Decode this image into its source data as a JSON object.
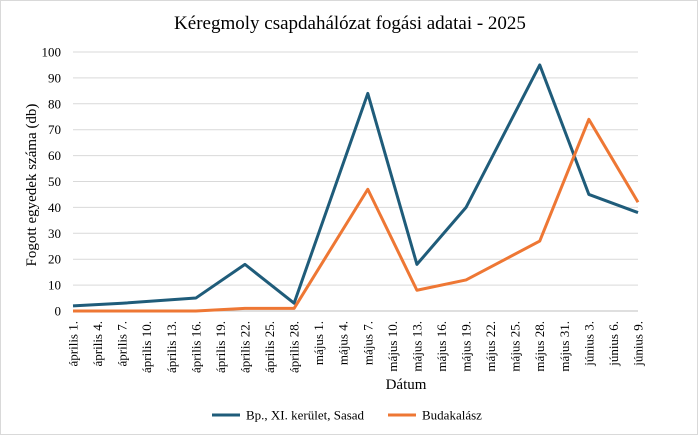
{
  "chart_data": {
    "type": "line",
    "title": "Kéregmoly csapdahálózat fogási adatai - 2025",
    "xlabel": "Dátum",
    "ylabel": "Fogott egyedek száma (db)",
    "ylim": [
      0,
      100
    ],
    "y_ticks": [
      "0",
      "10",
      "20",
      "30",
      "40",
      "50",
      "60",
      "70",
      "80",
      "90",
      "100"
    ],
    "categories": [
      "április 1.",
      "április 4.",
      "április 7.",
      "április 10.",
      "április 13.",
      "április 16.",
      "április 19.",
      "április 22.",
      "április 25.",
      "április 28.",
      "május 1.",
      "május 4.",
      "május 7.",
      "május 10.",
      "május 13.",
      "május 16.",
      "május 19.",
      "május 22.",
      "május 25.",
      "május 28.",
      "május 31.",
      "június 3.",
      "június 6.",
      "június 9."
    ],
    "series": [
      {
        "name": "Bp., XI. kerület, Sasad",
        "color": "#1F5C7A",
        "points": [
          {
            "x": "április 1.",
            "y": 2
          },
          {
            "x": "április 7.",
            "y": 3
          },
          {
            "x": "április 16.",
            "y": 5
          },
          {
            "x": "április 22.",
            "y": 18
          },
          {
            "x": "április 28.",
            "y": 3
          },
          {
            "x": "május 7.",
            "y": 84
          },
          {
            "x": "május 13.",
            "y": 18
          },
          {
            "x": "május 19.",
            "y": 40
          },
          {
            "x": "május 28.",
            "y": 95
          },
          {
            "x": "június 3.",
            "y": 45
          },
          {
            "x": "június 9.",
            "y": 38
          }
        ]
      },
      {
        "name": "Budakalász",
        "color": "#EE7734",
        "points": [
          {
            "x": "április 1.",
            "y": 0
          },
          {
            "x": "április 7.",
            "y": 0
          },
          {
            "x": "április 16.",
            "y": 0
          },
          {
            "x": "április 22.",
            "y": 1
          },
          {
            "x": "április 28.",
            "y": 1
          },
          {
            "x": "május 7.",
            "y": 47
          },
          {
            "x": "május 13.",
            "y": 8
          },
          {
            "x": "május 19.",
            "y": 12
          },
          {
            "x": "május 28.",
            "y": 27
          },
          {
            "x": "június 3.",
            "y": 74
          },
          {
            "x": "június 9.",
            "y": 42
          }
        ]
      }
    ],
    "grid": {
      "horizontal": true,
      "vertical": false
    },
    "legend_position": "bottom"
  }
}
